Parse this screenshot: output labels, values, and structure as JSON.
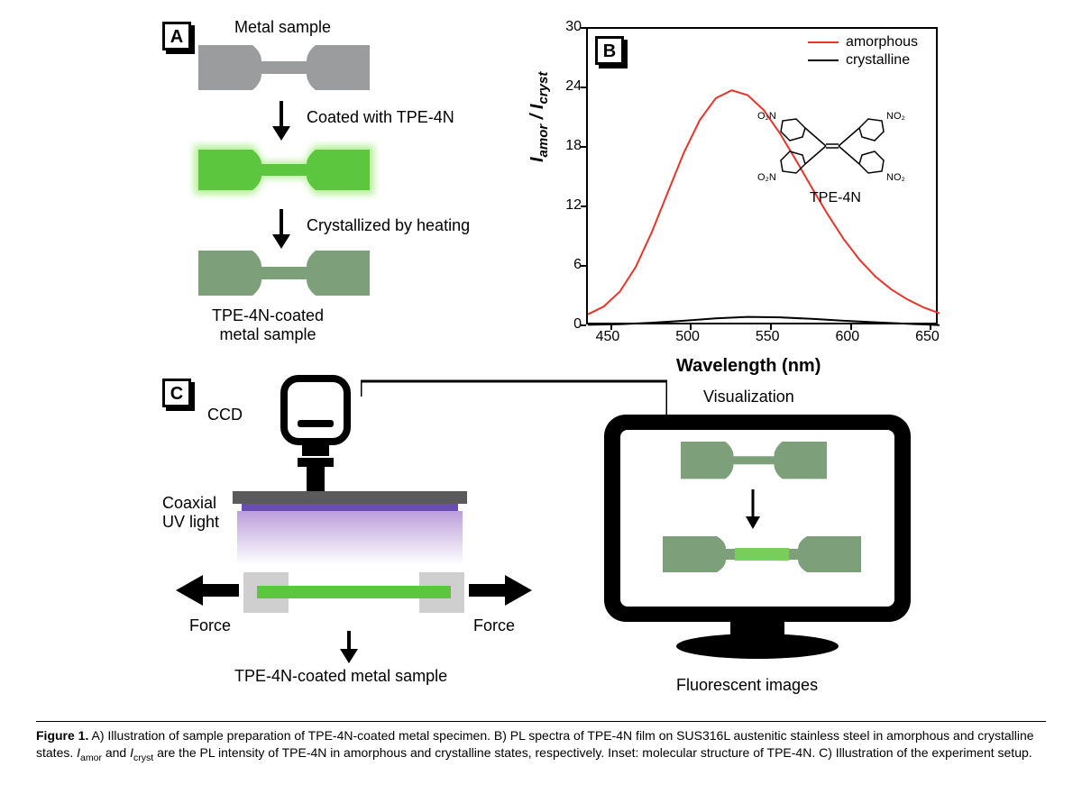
{
  "panelA": {
    "label": "A",
    "step1": "Metal sample",
    "step2": "Coated with TPE-4N",
    "step3": "Crystallized by heating",
    "final": "TPE-4N-coated\nmetal sample",
    "colors": {
      "metal": "#9b9c9e",
      "coated": "#5dc63f",
      "coated_glow": "#b8f09b",
      "crystallized": "#7da07a"
    }
  },
  "panelB": {
    "label": "B",
    "legend": {
      "amorphous": "amorphous",
      "crystalline": "crystalline"
    },
    "ylabel": "I_amor / I_cryst",
    "xlabel": "Wavelength (nm)",
    "xlim": [
      435,
      655
    ],
    "ylim": [
      0,
      30
    ],
    "yticks": [
      0,
      6,
      12,
      18,
      24,
      30
    ],
    "xticks": [
      450,
      500,
      550,
      600,
      650
    ],
    "series": {
      "amorphous": {
        "color": "#e6352b",
        "x": [
          435,
          445,
          455,
          465,
          475,
          485,
          495,
          505,
          515,
          525,
          535,
          545,
          555,
          565,
          575,
          585,
          595,
          605,
          615,
          625,
          635,
          645,
          655
        ],
        "y": [
          1.2,
          2.0,
          3.5,
          6.0,
          9.5,
          13.5,
          17.5,
          20.8,
          23.0,
          23.8,
          23.3,
          21.8,
          19.5,
          16.8,
          14.0,
          11.3,
          8.8,
          6.7,
          5.0,
          3.7,
          2.7,
          1.9,
          1.3
        ]
      },
      "crystalline": {
        "color": "#000000",
        "x": [
          435,
          455,
          475,
          495,
          515,
          535,
          555,
          575,
          595,
          615,
          635,
          655
        ],
        "y": [
          0.15,
          0.2,
          0.35,
          0.55,
          0.8,
          0.95,
          0.9,
          0.75,
          0.55,
          0.4,
          0.25,
          0.12
        ]
      }
    },
    "molecule": {
      "name": "TPE-4N",
      "groups": [
        "O₂N",
        "NO₂",
        "O₂N",
        "NO₂"
      ]
    }
  },
  "panelC": {
    "label": "C",
    "ccd": "CCD",
    "uv": "Coaxial\nUV light",
    "force": "Force",
    "sample_label": "TPE-4N-coated metal sample",
    "vis": "Visualization",
    "fluorescent": "Fluorescent images",
    "colors": {
      "uv_light": "#b493d8",
      "uv_bar": "#6a4db0",
      "sample_green": "#5dc63f",
      "grip": "#cfcfcf",
      "monitor": "#000000",
      "crystallized": "#7da07a",
      "bright": "#7acf5a"
    }
  },
  "caption": {
    "figlabel": "Figure 1.",
    "textA": "A) Illustration of sample preparation of TPE-4N-coated metal specimen. B) PL spectra of TPE-4N film on SUS316L austenitic stainless steel in amorphous and crystalline states. ",
    "textB_i1": "I",
    "textB_s1": "amor",
    "textB_mid": " and ",
    "textB_i2": "I",
    "textB_s2": "cryst",
    "textB_rest": " are the PL intensity of TPE-4N in amorphous and crystalline states, respectively. Inset: molecular structure of TPE-4N. C) Illustration of the experiment setup."
  }
}
